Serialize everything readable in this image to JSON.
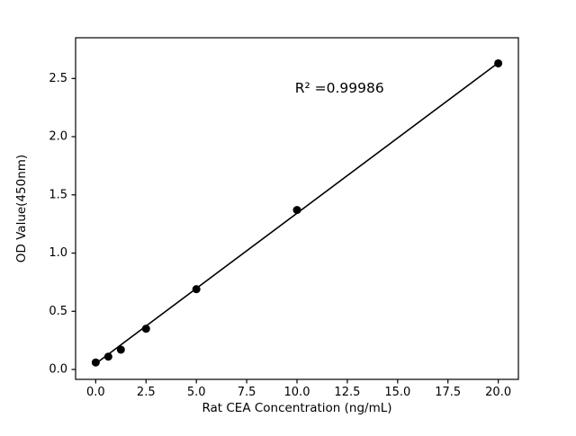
{
  "figure": {
    "background": "#ffffff"
  },
  "chart_data": {
    "type": "scatter",
    "title": "",
    "xlabel": "Rat CEA Concentration (ng/mL)",
    "ylabel": "OD Value(450nm)",
    "x_tick_labels": [
      "0.0",
      "2.5",
      "5.0",
      "7.5",
      "10.0",
      "12.5",
      "15.0",
      "17.5",
      "20.0"
    ],
    "y_tick_labels": [
      "0.0",
      "0.5",
      "1.0",
      "1.5",
      "2.0",
      "2.5"
    ],
    "xlim": [
      -1,
      21
    ],
    "ylim": [
      -0.085,
      2.85
    ],
    "grid": false,
    "legend": "none",
    "series": [
      {
        "name": "linear-fit",
        "type": "line",
        "x": [
          0,
          20
        ],
        "y": [
          0.05,
          2.635
        ],
        "color": "#000000",
        "width": 1.6
      },
      {
        "name": "standard-points",
        "type": "scatter",
        "x": [
          0,
          0.625,
          1.25,
          2.5,
          5,
          10,
          20
        ],
        "y": [
          0.06,
          0.11,
          0.17,
          0.35,
          0.69,
          1.37,
          2.63
        ],
        "color": "#000000",
        "marker_radius": 4.5
      }
    ],
    "annotation": {
      "text": "R² =0.99986",
      "x": 9.9,
      "y": 2.38,
      "font_px": 15.5
    },
    "axis_color": "#000000",
    "text_color": "#000000"
  }
}
